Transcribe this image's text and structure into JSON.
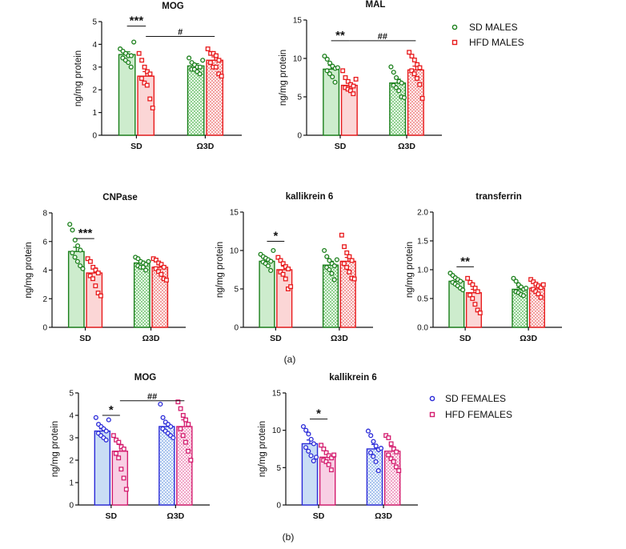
{
  "figure": {
    "panel_a_label": "(a)",
    "panel_b_label": "(b)",
    "legend_males": {
      "sd": "SD MALES",
      "hfd": "HFD MALES"
    },
    "legend_females": {
      "sd": "SD FEMALES",
      "hfd": "HFD FEMALES"
    }
  },
  "colors": {
    "sd_male": "#1a7f1a",
    "sd_male_fill": "#cdeccd",
    "hfd_male": "#e8191b",
    "hfd_male_fill": "#fbd6d6",
    "sd_female": "#2a2ad8",
    "sd_female_fill": "#c9ddf5",
    "hfd_female": "#d41c6e",
    "hfd_female_fill": "#f8cfe4"
  },
  "chart_data": [
    {
      "id": "mog_m",
      "type": "bar",
      "title": "MOG",
      "ylabel": "ng/mg protein",
      "xlabel": "",
      "categories": [
        "SD",
        "Ω3D"
      ],
      "ylim": [
        0,
        5
      ],
      "yticks": [
        "0",
        "1",
        "2",
        "3",
        "4",
        "5"
      ],
      "sex": "male",
      "series": [
        {
          "name": "SD MALES",
          "values": [
            3.55,
            3.05
          ],
          "sem": [
            0.12,
            0.1
          ],
          "points": [
            [
              3.8,
              3.7,
              3.6,
              3.5,
              3.5,
              3.4,
              3.3,
              3.2,
              3.0,
              4.1
            ],
            [
              3.4,
              3.2,
              3.1,
              3.0,
              3.0,
              2.9,
              2.9,
              2.8,
              2.7,
              3.3
            ]
          ]
        },
        {
          "name": "HFD MALES",
          "values": [
            2.6,
            3.3
          ],
          "sem": [
            0.2,
            0.15
          ],
          "points": [
            [
              3.6,
              3.3,
              3.0,
              2.8,
              2.7,
              2.5,
              2.3,
              2.2,
              1.6,
              1.2
            ],
            [
              3.8,
              3.6,
              3.6,
              3.5,
              3.3,
              3.2,
              3.0,
              3.0,
              2.7,
              2.6
            ]
          ]
        }
      ],
      "annotations": [
        {
          "text": "***",
          "from": [
            0,
            0
          ],
          "to": [
            0,
            1
          ],
          "y": 4.8
        },
        {
          "text": "#",
          "from": [
            0,
            1
          ],
          "to": [
            1,
            1
          ],
          "y": 4.35
        }
      ]
    },
    {
      "id": "mal_m",
      "type": "bar",
      "title": "MAL",
      "ylabel": "ng/mg protein",
      "xlabel": "",
      "categories": [
        "SD",
        "Ω3D"
      ],
      "ylim": [
        0,
        15
      ],
      "yticks": [
        "0",
        "5",
        "10",
        "15"
      ],
      "sex": "male",
      "series": [
        {
          "name": "SD MALES",
          "values": [
            8.6,
            6.8
          ],
          "sem": [
            0.5,
            0.5
          ],
          "points": [
            [
              10.3,
              9.9,
              9.4,
              9.0,
              8.7,
              8.4,
              8.0,
              7.6,
              6.9,
              8.8
            ],
            [
              8.9,
              8.2,
              7.5,
              7.0,
              6.8,
              6.5,
              6.2,
              5.8,
              5.0,
              4.9
            ]
          ]
        },
        {
          "name": "HFD MALES",
          "values": [
            6.5,
            8.5
          ],
          "sem": [
            0.3,
            0.5
          ],
          "points": [
            [
              8.4,
              7.5,
              7.0,
              6.6,
              6.4,
              6.2,
              6.0,
              5.8,
              5.4,
              7.3
            ],
            [
              10.8,
              10.3,
              9.8,
              9.2,
              8.8,
              8.4,
              8.0,
              7.4,
              6.6,
              4.8
            ]
          ]
        }
      ],
      "annotations": [
        {
          "text": "**",
          "from": [
            0,
            0
          ],
          "to": [
            0,
            1
          ],
          "y": 12.3
        },
        {
          "text": "##",
          "from": [
            0,
            1
          ],
          "to": [
            1,
            1
          ],
          "y": 12.3
        }
      ]
    },
    {
      "id": "cnp_m",
      "type": "bar",
      "title": "CNPase",
      "ylabel": "ng/mg protein",
      "xlabel": "",
      "categories": [
        "SD",
        "Ω3D"
      ],
      "ylim": [
        0,
        8
      ],
      "yticks": [
        "0",
        "2",
        "4",
        "6",
        "8"
      ],
      "sex": "male",
      "series": [
        {
          "name": "SD MALES",
          "values": [
            5.3,
            4.5
          ],
          "sem": [
            0.3,
            0.12
          ],
          "points": [
            [
              7.2,
              6.8,
              6.1,
              5.7,
              5.4,
              5.2,
              4.9,
              4.6,
              4.3,
              4.1
            ],
            [
              4.9,
              4.8,
              4.6,
              4.5,
              4.4,
              4.3,
              4.2,
              4.2,
              4.0,
              4.6
            ]
          ]
        },
        {
          "name": "HFD MALES",
          "values": [
            3.8,
            4.2
          ],
          "sem": [
            0.35,
            0.2
          ],
          "points": [
            [
              4.8,
              4.6,
              4.2,
              4.0,
              3.8,
              3.6,
              3.4,
              2.9,
              2.4,
              2.2
            ],
            [
              4.8,
              4.7,
              4.5,
              4.4,
              4.2,
              4.1,
              3.9,
              3.7,
              3.4,
              3.3
            ]
          ]
        }
      ],
      "annotations": [
        {
          "text": "***",
          "from": [
            0,
            0
          ],
          "to": [
            0,
            1
          ],
          "y": 6.2
        }
      ]
    },
    {
      "id": "klk_m",
      "type": "bar",
      "title": "kallikrein 6",
      "ylabel": "ng/mg protein",
      "xlabel": "",
      "categories": [
        "SD",
        "Ω3D"
      ],
      "ylim": [
        0,
        15
      ],
      "yticks": [
        "0",
        "5",
        "10",
        "15"
      ],
      "sex": "male",
      "series": [
        {
          "name": "SD MALES",
          "values": [
            8.6,
            8.1
          ],
          "sem": [
            0.3,
            0.5
          ],
          "points": [
            [
              9.5,
              9.2,
              9.0,
              8.8,
              8.6,
              8.5,
              8.3,
              8.0,
              7.4,
              10.0
            ],
            [
              10.0,
              9.2,
              8.7,
              8.3,
              8.0,
              7.8,
              7.5,
              7.0,
              6.2,
              8.8
            ]
          ]
        },
        {
          "name": "HFD MALES",
          "values": [
            7.5,
            8.6
          ],
          "sem": [
            0.45,
            0.5
          ],
          "points": [
            [
              9.1,
              8.7,
              8.3,
              7.9,
              7.6,
              7.2,
              6.9,
              6.3,
              5.0,
              5.3
            ],
            [
              12.0,
              10.5,
              9.7,
              9.2,
              8.7,
              8.3,
              7.8,
              7.2,
              6.4,
              6.3
            ]
          ]
        }
      ],
      "annotations": [
        {
          "text": "*",
          "from": [
            0,
            0
          ],
          "to": [
            0,
            1
          ],
          "y": 11.2
        }
      ]
    },
    {
      "id": "trf_m",
      "type": "bar",
      "title": "transferrin",
      "ylabel": "ng/mg protein",
      "xlabel": "",
      "categories": [
        "SD",
        "Ω3D"
      ],
      "ylim": [
        0,
        2
      ],
      "yticks": [
        "0.0",
        "0.5",
        "1.0",
        "1.5",
        "2.0"
      ],
      "sex": "male",
      "series": [
        {
          "name": "SD MALES",
          "values": [
            0.8,
            0.66
          ],
          "sem": [
            0.04,
            0.03
          ],
          "points": [
            [
              0.94,
              0.9,
              0.86,
              0.83,
              0.8,
              0.78,
              0.75,
              0.72,
              0.68,
              0.65
            ],
            [
              0.85,
              0.8,
              0.74,
              0.7,
              0.66,
              0.62,
              0.6,
              0.57,
              0.55,
              0.68
            ]
          ]
        },
        {
          "name": "HFD MALES",
          "values": [
            0.6,
            0.68
          ],
          "sem": [
            0.06,
            0.04
          ],
          "points": [
            [
              0.85,
              0.78,
              0.74,
              0.68,
              0.62,
              0.56,
              0.5,
              0.4,
              0.3,
              0.25
            ],
            [
              0.83,
              0.79,
              0.75,
              0.72,
              0.69,
              0.66,
              0.62,
              0.58,
              0.52,
              0.74
            ]
          ]
        }
      ],
      "annotations": [
        {
          "text": "**",
          "from": [
            0,
            0
          ],
          "to": [
            0,
            1
          ],
          "y": 1.05
        }
      ]
    },
    {
      "id": "mog_f",
      "type": "bar",
      "title": "MOG",
      "ylabel": "ng/mg protein",
      "xlabel": "",
      "categories": [
        "SD",
        "Ω3D"
      ],
      "ylim": [
        0,
        5
      ],
      "yticks": [
        "0",
        "1",
        "2",
        "3",
        "4",
        "5"
      ],
      "sex": "female",
      "series": [
        {
          "name": "SD FEMALES",
          "values": [
            3.3,
            3.5
          ],
          "sem": [
            0.1,
            0.12
          ],
          "points": [
            [
              3.9,
              3.6,
              3.5,
              3.4,
              3.3,
              3.2,
              3.1,
              3.0,
              2.9,
              3.8
            ],
            [
              4.5,
              3.9,
              3.7,
              3.6,
              3.5,
              3.4,
              3.3,
              3.2,
              3.1,
              3.0
            ]
          ]
        },
        {
          "name": "HFD FEMALES",
          "values": [
            2.4,
            3.5
          ],
          "sem": [
            0.3,
            0.3
          ],
          "points": [
            [
              3.1,
              2.9,
              2.8,
              2.6,
              2.5,
              2.3,
              2.1,
              1.6,
              1.2,
              0.7
            ],
            [
              4.6,
              4.3,
              4.0,
              3.8,
              3.6,
              3.4,
              3.1,
              2.8,
              2.4,
              2.0
            ]
          ]
        }
      ],
      "annotations": [
        {
          "text": "*",
          "from": [
            0,
            0
          ],
          "to": [
            0,
            1
          ],
          "y": 4.0
        },
        {
          "text": "##",
          "from": [
            0,
            1
          ],
          "to": [
            1,
            1
          ],
          "y": 4.65
        }
      ]
    },
    {
      "id": "klk_f",
      "type": "bar",
      "title": "kallikrein 6",
      "ylabel": "ng/mg protein",
      "xlabel": "",
      "categories": [
        "SD",
        "Ω3D"
      ],
      "ylim": [
        0,
        15
      ],
      "yticks": [
        "0",
        "5",
        "10",
        "15"
      ],
      "sex": "female",
      "series": [
        {
          "name": "SD FEMALES",
          "values": [
            8.2,
            7.5
          ],
          "sem": [
            0.5,
            0.6
          ],
          "points": [
            [
              10.5,
              10.0,
              9.5,
              8.8,
              8.2,
              7.7,
              7.2,
              6.6,
              5.9,
              6.4
            ],
            [
              9.9,
              9.3,
              8.5,
              7.9,
              7.4,
              7.0,
              6.5,
              5.8,
              4.6,
              7.6
            ]
          ]
        },
        {
          "name": "HFD FEMALES",
          "values": [
            6.4,
            7.2
          ],
          "sem": [
            0.4,
            0.6
          ],
          "points": [
            [
              8.0,
              7.5,
              7.0,
              6.6,
              6.3,
              6.0,
              5.8,
              5.4,
              4.7,
              6.7
            ],
            [
              9.3,
              9.0,
              8.2,
              7.5,
              7.1,
              6.7,
              6.2,
              5.8,
              5.1,
              4.6
            ]
          ]
        }
      ],
      "annotations": [
        {
          "text": "*",
          "from": [
            0,
            0
          ],
          "to": [
            0,
            1
          ],
          "y": 11.5
        }
      ]
    }
  ]
}
